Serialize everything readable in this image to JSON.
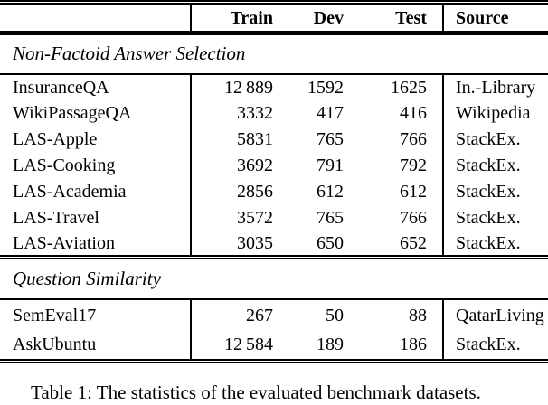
{
  "header": {
    "train": "Train",
    "dev": "Dev",
    "test": "Test",
    "source": "Source"
  },
  "sections": [
    {
      "title": "Non-Factoid Answer Selection",
      "rows": [
        {
          "name": "InsuranceQA",
          "train": "12 889",
          "dev": "1592",
          "test": "1625",
          "source": "In.-Library"
        },
        {
          "name": "WikiPassageQA",
          "train": "3332",
          "dev": "417",
          "test": "416",
          "source": "Wikipedia"
        },
        {
          "name": "LAS-Apple",
          "train": "5831",
          "dev": "765",
          "test": "766",
          "source": "StackEx."
        },
        {
          "name": "LAS-Cooking",
          "train": "3692",
          "dev": "791",
          "test": "792",
          "source": "StackEx."
        },
        {
          "name": "LAS-Academia",
          "train": "2856",
          "dev": "612",
          "test": "612",
          "source": "StackEx."
        },
        {
          "name": "LAS-Travel",
          "train": "3572",
          "dev": "765",
          "test": "766",
          "source": "StackEx."
        },
        {
          "name": "LAS-Aviation",
          "train": "3035",
          "dev": "650",
          "test": "652",
          "source": "StackEx."
        }
      ]
    },
    {
      "title": "Question Similarity",
      "rows": [
        {
          "name": "SemEval17",
          "train": "267",
          "dev": "50",
          "test": "88",
          "source": "QatarLiving"
        },
        {
          "name": "AskUbuntu",
          "train": "12 584",
          "dev": "189",
          "test": "186",
          "source": "StackEx."
        }
      ]
    }
  ],
  "caption": "Table 1: The statistics of the evaluated benchmark datasets.",
  "colors": {
    "text": "#000000",
    "background": "#ffffff",
    "rule": "#000000"
  }
}
